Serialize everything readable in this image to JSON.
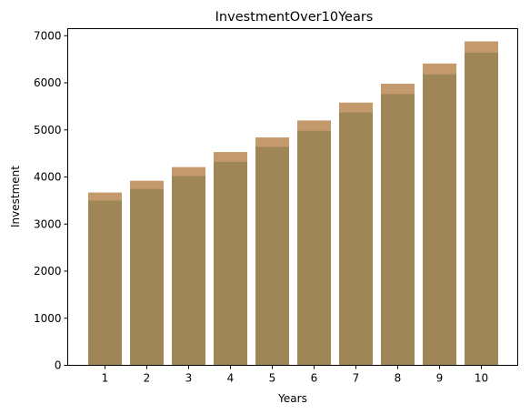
{
  "chart_data": {
    "type": "bar",
    "title": "InvestmentOver10Years",
    "xlabel": "Years",
    "ylabel": "Investment",
    "categories": [
      "1",
      "2",
      "3",
      "4",
      "5",
      "6",
      "7",
      "8",
      "9",
      "10"
    ],
    "x_ticks": [
      "1",
      "2",
      "3",
      "4",
      "5",
      "6",
      "7",
      "8",
      "9",
      "10"
    ],
    "y_ticks": [
      "0",
      "1000",
      "2000",
      "3000",
      "4000",
      "5000",
      "6000",
      "7000"
    ],
    "ylim": [
      0,
      7150
    ],
    "grid": false,
    "series": [
      {
        "color": "#c49a6c",
        "values": [
          3670,
          3920,
          4210,
          4530,
          4840,
          5200,
          5580,
          5980,
          6410,
          6880
        ]
      },
      {
        "color": "#9e8656",
        "values": [
          3500,
          3745,
          4020,
          4320,
          4640,
          4980,
          5370,
          5760,
          6180,
          6640
        ]
      }
    ]
  }
}
